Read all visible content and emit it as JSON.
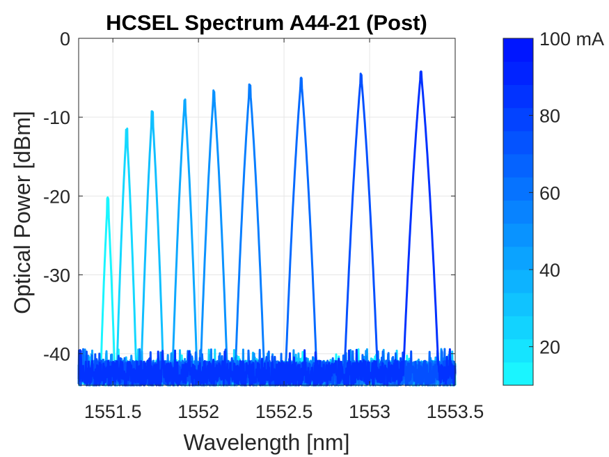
{
  "chart_data": {
    "type": "line",
    "title": "HCSEL Spectrum A44-21 (Post)",
    "xlabel": "Wavelength [nm]",
    "ylabel": "Optical Power [dBm]",
    "xlim": [
      1551.3,
      1553.5
    ],
    "ylim": [
      -44,
      0
    ],
    "x_ticks": [
      1551.5,
      1552,
      1552.5,
      1553,
      1553.5
    ],
    "x_tick_labels": [
      "1551.5",
      "1552",
      "1552.5",
      "1553",
      "1553.5"
    ],
    "y_ticks": [
      0,
      -10,
      -20,
      -30,
      -40
    ],
    "y_tick_labels": [
      "0",
      "-10",
      "-20",
      "-30",
      "-40"
    ],
    "grid": true,
    "noise_floor_dbm": -42.5,
    "series": [
      {
        "current_ma": 10,
        "peak_nm": 1551.47,
        "peak_dbm": -20.3,
        "color": "#1AF5FF"
      },
      {
        "current_ma": 20,
        "peak_nm": 1551.58,
        "peak_dbm": -11.5,
        "color": "#14D8FF"
      },
      {
        "current_ma": 30,
        "peak_nm": 1551.73,
        "peak_dbm": -9.3,
        "color": "#10BFFF"
      },
      {
        "current_ma": 40,
        "peak_nm": 1551.92,
        "peak_dbm": -7.8,
        "color": "#0DA8FF"
      },
      {
        "current_ma": 50,
        "peak_nm": 1552.09,
        "peak_dbm": -6.7,
        "color": "#0A92FF"
      },
      {
        "current_ma": 60,
        "peak_nm": 1552.3,
        "peak_dbm": -5.9,
        "color": "#087EFF"
      },
      {
        "current_ma": 70,
        "peak_nm": 1552.6,
        "peak_dbm": -5.1,
        "color": "#066AFF"
      },
      {
        "current_ma": 80,
        "peak_nm": 1552.95,
        "peak_dbm": -4.6,
        "color": "#0450FF"
      },
      {
        "current_ma": 100,
        "peak_nm": 1553.3,
        "peak_dbm": -4.2,
        "color": "#0232FF"
      }
    ],
    "colorbar": {
      "lim": [
        10,
        100
      ],
      "ticks": [
        20,
        40,
        60,
        80,
        100
      ],
      "tick_labels": [
        "20",
        "40",
        "60",
        "80",
        "100 mA"
      ],
      "colors": [
        "#1AF5FF",
        "#15E4FF",
        "#12D3FF",
        "#10C3FF",
        "#0DB3FF",
        "#0BA3FF",
        "#0993FF",
        "#0883FF",
        "#0673FF",
        "#0563FF",
        "#0453FF",
        "#0343FF",
        "#0233FF",
        "#0123FF",
        "#0016FF"
      ]
    }
  }
}
